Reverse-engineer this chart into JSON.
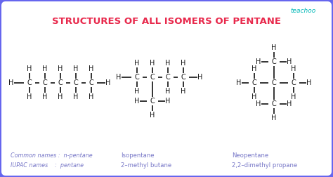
{
  "title": "STRUCTURES OF ALL ISOMERS OF PENTANE",
  "title_color": "#e8294c",
  "title_fontsize": 9.5,
  "bg_color": "#f0f0ff",
  "inner_bg": "#ffffff",
  "border_color": "#6666ee",
  "teachoo_color": "#00b8b8",
  "label_color": "#7878c8",
  "structure_color": "#111111",
  "label1_line1": "Common names :  n-pentane",
  "label1_line2": "IUPAC names    :  pentane",
  "label2_line1": "Isopentane",
  "label2_line2": "2–methyl butane",
  "label3_line1": "Neopentane",
  "label3_line2": "2,2–dimethyl propane"
}
